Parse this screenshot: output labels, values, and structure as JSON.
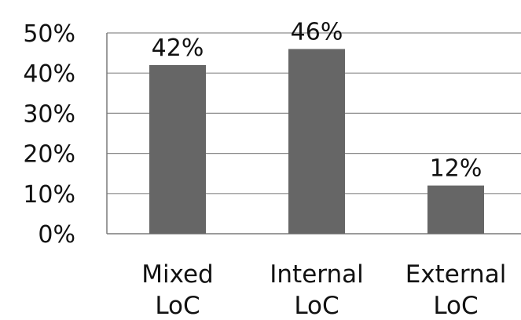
{
  "chart_data": {
    "type": "bar",
    "categories": [
      [
        "Mixed",
        "LoC"
      ],
      [
        "Internal",
        "LoC"
      ],
      [
        "External",
        "LoC"
      ]
    ],
    "values": [
      42,
      46,
      12
    ],
    "data_labels": [
      "42%",
      "46%",
      "12%"
    ],
    "y_ticks": [
      0,
      10,
      20,
      30,
      40,
      50
    ],
    "y_tick_labels": [
      "0%",
      "10%",
      "20%",
      "30%",
      "40%",
      "50%"
    ],
    "ylim": [
      0,
      50
    ],
    "grid": true,
    "bar_color": "#666666",
    "title": "",
    "xlabel": "",
    "ylabel": ""
  }
}
